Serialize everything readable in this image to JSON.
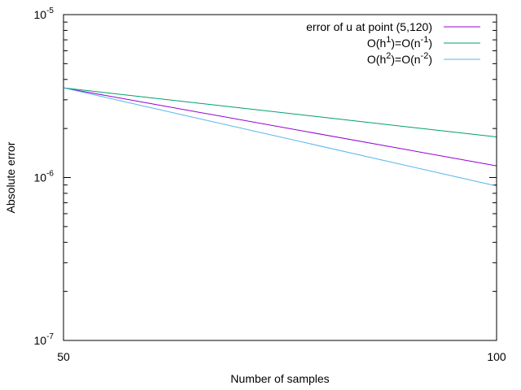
{
  "chart_data": {
    "type": "line",
    "xlabel": "Number of samples",
    "ylabel": "Absolute error",
    "xscale": "log",
    "yscale": "log",
    "xlim": [
      50,
      100
    ],
    "ylim": [
      1e-07,
      1e-05
    ],
    "x_ticks": [
      {
        "value": 50,
        "label": "50"
      },
      {
        "value": 100,
        "label": "100"
      }
    ],
    "y_ticks": [
      {
        "value": 1e-07,
        "base": "10",
        "exp": "-7"
      },
      {
        "value": 1e-06,
        "base": "10",
        "exp": "-6"
      },
      {
        "value": 1e-05,
        "base": "10",
        "exp": "-5"
      }
    ],
    "grid": false,
    "legend_position": "top-right",
    "series": [
      {
        "legend": [
          {
            "text": "error of u at point (5,120)",
            "sup": false
          }
        ],
        "color": "#9400d3",
        "x": [
          50,
          100
        ],
        "y": [
          3.55e-06,
          1.18e-06
        ]
      },
      {
        "legend": [
          {
            "text": "O(h",
            "sup": false
          },
          {
            "text": "1",
            "sup": true
          },
          {
            "text": ")=O(n",
            "sup": false
          },
          {
            "text": "-1",
            "sup": true
          },
          {
            "text": ")",
            "sup": false
          }
        ],
        "color": "#009e73",
        "x": [
          50,
          100
        ],
        "y": [
          3.55e-06,
          1.775e-06
        ]
      },
      {
        "legend": [
          {
            "text": "O(h",
            "sup": false
          },
          {
            "text": "2",
            "sup": true
          },
          {
            "text": ")=O(n",
            "sup": false
          },
          {
            "text": "-2",
            "sup": true
          },
          {
            "text": ")",
            "sup": false
          }
        ],
        "color": "#56b4e9",
        "x": [
          50,
          100
        ],
        "y": [
          3.55e-06,
          8.875e-07
        ]
      }
    ]
  }
}
